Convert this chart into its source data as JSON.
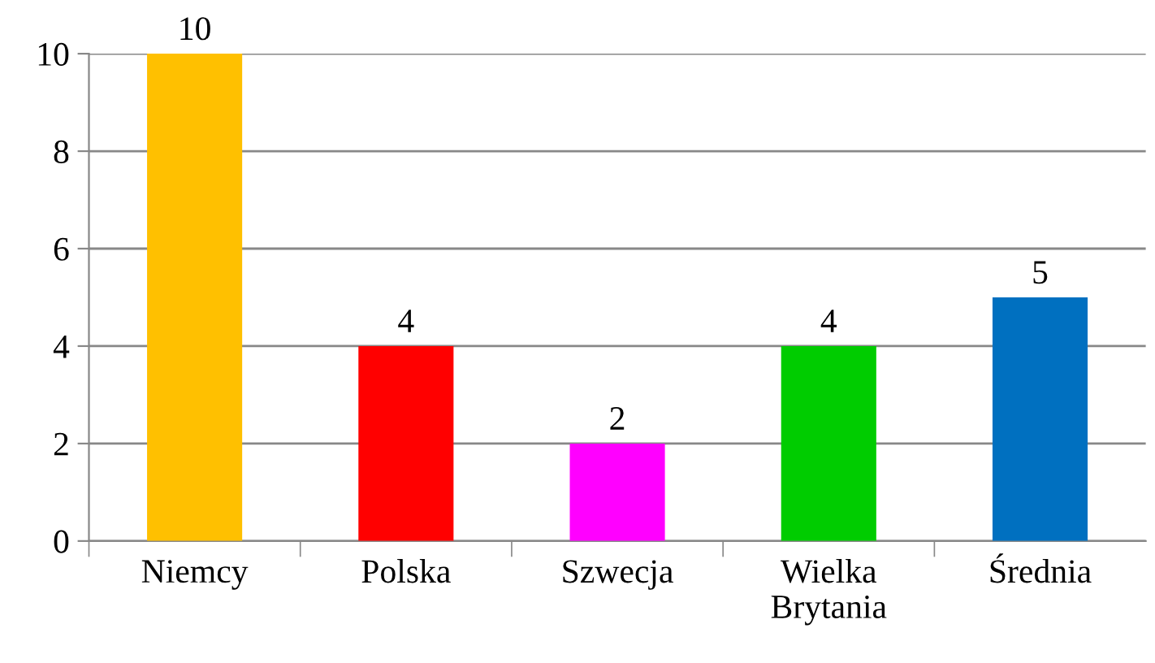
{
  "chart_data": {
    "type": "bar",
    "categories": [
      "Niemcy",
      "Polska",
      "Szwecja",
      "Wielka Brytania",
      "Średnia"
    ],
    "values": [
      10,
      4,
      2,
      4,
      5
    ],
    "colors": [
      "#ffc000",
      "#ff0000",
      "#ff00ff",
      "#00cc00",
      "#0070c0"
    ],
    "ylim": [
      0,
      10
    ],
    "yticks": [
      0,
      2,
      4,
      6,
      8,
      10
    ],
    "grid": "y",
    "data_labels": true
  }
}
